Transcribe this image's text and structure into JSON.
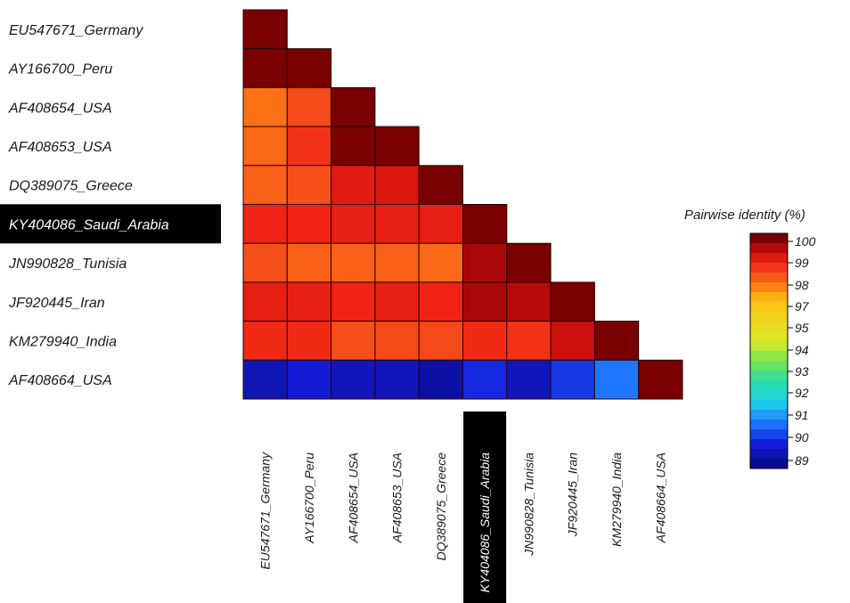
{
  "chart_data": {
    "type": "heatmap",
    "title": "",
    "rows": [
      "EU547671_Germany",
      "AY166700_Peru",
      "AF408654_USA",
      "AF408653_USA",
      "DQ389075_Greece",
      "KY404086_Saudi_Arabia",
      "JN990828_Tunisia",
      "JF920445_Iran",
      "KM279940_India",
      "AF408664_USA"
    ],
    "columns": [
      "EU547671_Germany",
      "AY166700_Peru",
      "AF408654_USA",
      "AF408653_USA",
      "DQ389075_Greece",
      "KY404086_Saudi_Arabia",
      "JN990828_Tunisia",
      "JF920445_Iran",
      "KM279940_India",
      "AF408664_USA"
    ],
    "highlighted": "KY404086_Saudi_Arabia",
    "matrix": [
      [
        100
      ],
      [
        100,
        100
      ],
      [
        97.8,
        98.3,
        100
      ],
      [
        97.9,
        98.6,
        100,
        100
      ],
      [
        98.0,
        98.2,
        99.0,
        99.1,
        100
      ],
      [
        98.8,
        98.8,
        98.9,
        98.9,
        98.9,
        100
      ],
      [
        98.2,
        98.0,
        98.0,
        98.0,
        97.9,
        99.6,
        100
      ],
      [
        98.9,
        98.9,
        98.8,
        98.9,
        98.8,
        99.6,
        99.5,
        100
      ],
      [
        98.7,
        98.7,
        98.2,
        98.3,
        98.3,
        98.7,
        98.6,
        99.3,
        100
      ],
      [
        89.5,
        89.9,
        89.6,
        89.6,
        89.3,
        90.1,
        89.6,
        90.3,
        91.0,
        100
      ]
    ],
    "legend": {
      "title": "Pairwise identity (%)",
      "ticks": [
        "100",
        "99",
        "98",
        "97",
        "95",
        "94",
        "93",
        "92",
        "91",
        "90",
        "89"
      ],
      "placement": "right"
    }
  }
}
